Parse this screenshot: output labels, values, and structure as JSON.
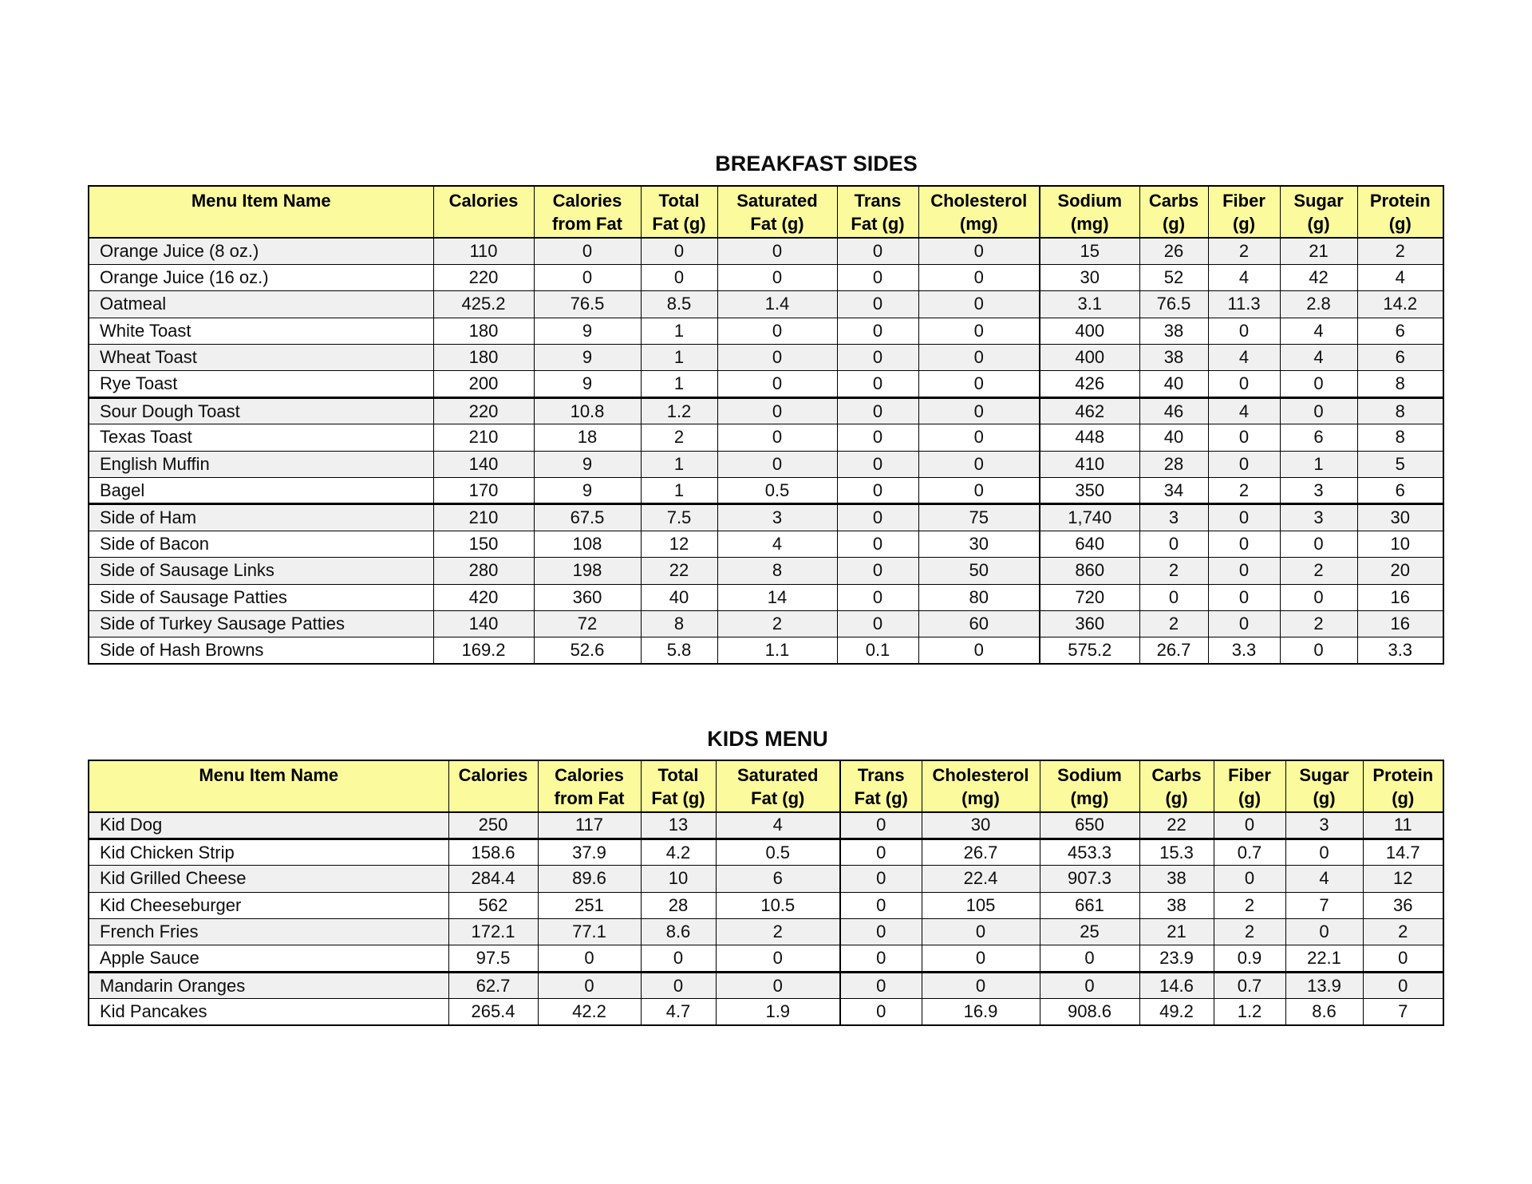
{
  "colors": {
    "header_bg": "#FBFB9D",
    "stripe_row_bg": "#F0F0F0",
    "row_bg": "#FFFFFF",
    "border": "#000000",
    "text": "#000000"
  },
  "column_headers": [
    [
      "Menu Item Name"
    ],
    [
      "Calories"
    ],
    [
      "Calories",
      "from Fat"
    ],
    [
      "Total",
      "Fat (g)"
    ],
    [
      "Saturated",
      "Fat (g)"
    ],
    [
      "Trans",
      "Fat (g)"
    ],
    [
      "Cholesterol",
      "(mg)"
    ],
    [
      "Sodium",
      "(mg)"
    ],
    [
      "Carbs",
      "(g)"
    ],
    [
      "Fiber",
      "(g)"
    ],
    [
      "Sugar",
      "(g)"
    ],
    [
      "Protein",
      "(g)"
    ]
  ],
  "tables": [
    {
      "title": "BREAKFAST SIDES",
      "rows": [
        {
          "name": "Orange Juice (8 oz.)",
          "values": [
            "110",
            "0",
            "0",
            "0",
            "0",
            "0",
            "15",
            "26",
            "2",
            "21",
            "2"
          ]
        },
        {
          "name": "Orange Juice (16 oz.)",
          "values": [
            "220",
            "0",
            "0",
            "0",
            "0",
            "0",
            "30",
            "52",
            "4",
            "42",
            "4"
          ]
        },
        {
          "name": "Oatmeal",
          "values": [
            "425.2",
            "76.5",
            "8.5",
            "1.4",
            "0",
            "0",
            "3.1",
            "76.5",
            "11.3",
            "2.8",
            "14.2"
          ]
        },
        {
          "name": "White Toast",
          "values": [
            "180",
            "9",
            "1",
            "0",
            "0",
            "0",
            "400",
            "38",
            "0",
            "4",
            "6"
          ]
        },
        {
          "name": "Wheat Toast",
          "values": [
            "180",
            "9",
            "1",
            "0",
            "0",
            "0",
            "400",
            "38",
            "4",
            "4",
            "6"
          ]
        },
        {
          "name": "Rye Toast",
          "values": [
            "200",
            "9",
            "1",
            "0",
            "0",
            "0",
            "426",
            "40",
            "0",
            "0",
            "8"
          ]
        },
        {
          "name": "Sour Dough Toast",
          "values": [
            "220",
            "10.8",
            "1.2",
            "0",
            "0",
            "0",
            "462",
            "46",
            "4",
            "0",
            "8"
          ],
          "thick_top": true
        },
        {
          "name": "Texas Toast",
          "values": [
            "210",
            "18",
            "2",
            "0",
            "0",
            "0",
            "448",
            "40",
            "0",
            "6",
            "8"
          ]
        },
        {
          "name": "English Muffin",
          "values": [
            "140",
            "9",
            "1",
            "0",
            "0",
            "0",
            "410",
            "28",
            "0",
            "1",
            "5"
          ]
        },
        {
          "name": "Bagel",
          "values": [
            "170",
            "9",
            "1",
            "0.5",
            "0",
            "0",
            "350",
            "34",
            "2",
            "3",
            "6"
          ]
        },
        {
          "name": "Side of Ham",
          "values": [
            "210",
            "67.5",
            "7.5",
            "3",
            "0",
            "75",
            "1,740",
            "3",
            "0",
            "3",
            "30"
          ],
          "thick_top": true
        },
        {
          "name": "Side of Bacon",
          "values": [
            "150",
            "108",
            "12",
            "4",
            "0",
            "30",
            "640",
            "0",
            "0",
            "0",
            "10"
          ]
        },
        {
          "name": "Side of Sausage Links",
          "values": [
            "280",
            "198",
            "22",
            "8",
            "0",
            "50",
            "860",
            "2",
            "0",
            "2",
            "20"
          ]
        },
        {
          "name": "Side of Sausage Patties",
          "values": [
            "420",
            "360",
            "40",
            "14",
            "0",
            "80",
            "720",
            "0",
            "0",
            "0",
            "16"
          ]
        },
        {
          "name": "Side of Turkey Sausage Patties",
          "values": [
            "140",
            "72",
            "8",
            "2",
            "0",
            "60",
            "360",
            "2",
            "0",
            "2",
            "16"
          ]
        },
        {
          "name": "Side of Hash Browns",
          "values": [
            "169.2",
            "52.6",
            "5.8",
            "1.1",
            "0.1",
            "0",
            "575.2",
            "26.7",
            "3.3",
            "0",
            "3.3"
          ]
        }
      ]
    },
    {
      "title": "KIDS MENU",
      "rows": [
        {
          "name": "Kid Dog",
          "values": [
            "250",
            "117",
            "13",
            "4",
            "0",
            "30",
            "650",
            "22",
            "0",
            "3",
            "11"
          ]
        },
        {
          "name": "Kid Chicken Strip",
          "values": [
            "158.6",
            "37.9",
            "4.2",
            "0.5",
            "0",
            "26.7",
            "453.3",
            "15.3",
            "0.7",
            "0",
            "14.7"
          ],
          "thick_top": true
        },
        {
          "name": "Kid Grilled Cheese",
          "values": [
            "284.4",
            "89.6",
            "10",
            "6",
            "0",
            "22.4",
            "907.3",
            "38",
            "0",
            "4",
            "12"
          ]
        },
        {
          "name": "Kid Cheeseburger",
          "values": [
            "562",
            "251",
            "28",
            "10.5",
            "0",
            "105",
            "661",
            "38",
            "2",
            "7",
            "36"
          ]
        },
        {
          "name": "French Fries",
          "values": [
            "172.1",
            "77.1",
            "8.6",
            "2",
            "0",
            "0",
            "25",
            "21",
            "2",
            "0",
            "2"
          ]
        },
        {
          "name": "Apple Sauce",
          "values": [
            "97.5",
            "0",
            "0",
            "0",
            "0",
            "0",
            "0",
            "23.9",
            "0.9",
            "22.1",
            "0"
          ]
        },
        {
          "name": "Mandarin Oranges",
          "values": [
            "62.7",
            "0",
            "0",
            "0",
            "0",
            "0",
            "0",
            "14.6",
            "0.7",
            "13.9",
            "0"
          ],
          "thick_top": true
        },
        {
          "name": "Kid Pancakes",
          "values": [
            "265.4",
            "42.2",
            "4.7",
            "1.9",
            "0",
            "16.9",
            "908.6",
            "49.2",
            "1.2",
            "8.6",
            "7"
          ]
        }
      ]
    }
  ]
}
